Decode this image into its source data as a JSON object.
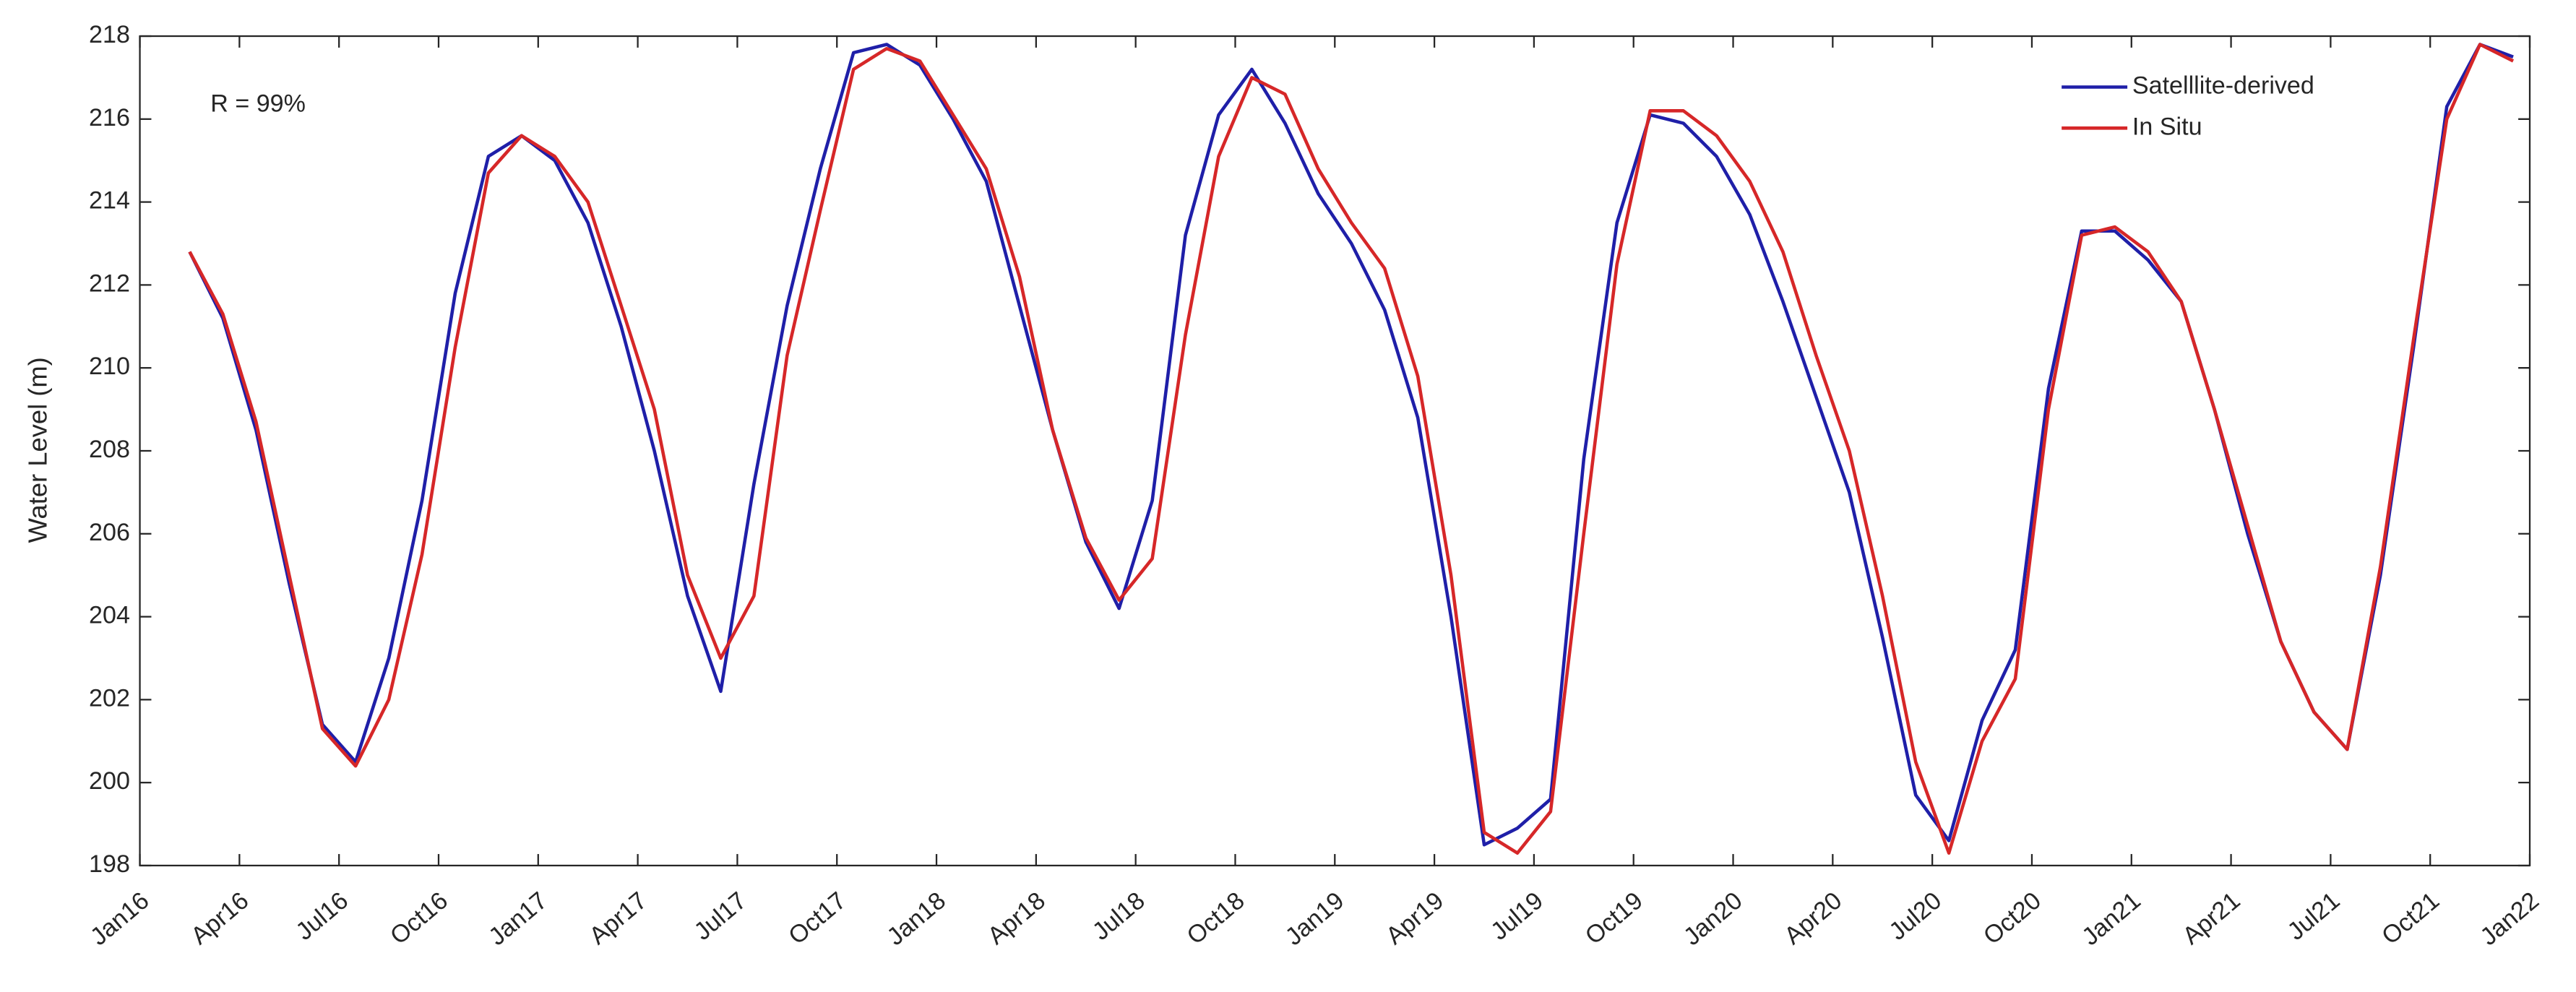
{
  "chart_data": {
    "type": "line",
    "y_label": "Water Level (m)",
    "annotation": "R = 99%",
    "x": [
      "2016-02",
      "2016-03",
      "2016-04",
      "2016-05",
      "2016-06",
      "2016-07",
      "2016-08",
      "2016-09",
      "2016-10",
      "2016-11",
      "2016-12",
      "2017-01",
      "2017-02",
      "2017-03",
      "2017-04",
      "2017-05",
      "2017-06",
      "2017-07",
      "2017-08",
      "2017-09",
      "2017-10",
      "2017-11",
      "2017-12",
      "2018-01",
      "2018-02",
      "2018-03",
      "2018-04",
      "2018-05",
      "2018-06",
      "2018-07",
      "2018-08",
      "2018-09",
      "2018-10",
      "2018-11",
      "2018-12",
      "2019-01",
      "2019-02",
      "2019-03",
      "2019-04",
      "2019-05",
      "2019-06",
      "2019-07",
      "2019-08",
      "2019-09",
      "2019-10",
      "2019-11",
      "2019-12",
      "2020-01",
      "2020-02",
      "2020-03",
      "2020-04",
      "2020-05",
      "2020-06",
      "2020-07",
      "2020-08",
      "2020-09",
      "2020-10",
      "2020-11",
      "2020-12",
      "2021-01",
      "2021-02",
      "2021-03",
      "2021-04",
      "2021-05",
      "2021-06",
      "2021-07",
      "2021-08",
      "2021-09",
      "2021-10",
      "2021-11",
      "2021-12"
    ],
    "series": [
      {
        "name": "Satelllite-derived",
        "color": "#1f1fa8",
        "values": [
          212.8,
          211.2,
          208.5,
          204.8,
          201.4,
          200.5,
          203.0,
          206.8,
          211.8,
          215.1,
          215.6,
          215.0,
          213.5,
          211.0,
          208.0,
          204.5,
          202.2,
          207.2,
          211.5,
          214.8,
          217.6,
          217.8,
          217.3,
          216.0,
          214.5,
          211.5,
          208.5,
          205.8,
          204.2,
          206.8,
          213.2,
          216.1,
          217.2,
          215.9,
          214.2,
          213.0,
          211.4,
          208.8,
          204.0,
          198.5,
          198.9,
          199.6,
          207.8,
          213.5,
          216.1,
          215.9,
          215.1,
          213.7,
          211.6,
          209.3,
          207.0,
          203.5,
          199.7,
          198.6,
          201.5,
          203.2,
          209.5,
          213.3,
          213.3,
          212.6,
          211.6,
          209.0,
          206.0,
          203.4,
          201.7,
          200.8,
          205.0,
          210.5,
          216.3,
          217.8,
          217.5
        ]
      },
      {
        "name": "In Situ",
        "color": "#d62728",
        "values": [
          212.8,
          211.3,
          208.7,
          205.0,
          201.3,
          200.4,
          202.0,
          205.5,
          210.5,
          214.7,
          215.6,
          215.1,
          214.0,
          211.5,
          209.0,
          205.0,
          203.0,
          204.5,
          210.3,
          213.8,
          217.2,
          217.7,
          217.4,
          216.1,
          214.8,
          212.2,
          208.5,
          205.9,
          204.4,
          205.4,
          210.8,
          215.1,
          217.0,
          216.6,
          214.8,
          213.5,
          212.4,
          209.8,
          205.0,
          198.8,
          198.3,
          199.3,
          206.0,
          212.5,
          216.2,
          216.2,
          215.6,
          214.5,
          212.8,
          210.3,
          208.0,
          204.5,
          200.5,
          198.3,
          201.0,
          202.5,
          209.0,
          213.2,
          213.4,
          212.8,
          211.6,
          209.0,
          206.2,
          203.4,
          201.7,
          200.8,
          205.2,
          210.7,
          216.0,
          217.8,
          217.4
        ]
      }
    ],
    "xlim": [
      "2016-01",
      "2022-01"
    ],
    "xticks": [
      {
        "value": "2016-01",
        "label": "Jan16"
      },
      {
        "value": "2016-04",
        "label": "Apr16"
      },
      {
        "value": "2016-07",
        "label": "Jul16"
      },
      {
        "value": "2016-10",
        "label": "Oct16"
      },
      {
        "value": "2017-01",
        "label": "Jan17"
      },
      {
        "value": "2017-04",
        "label": "Apr17"
      },
      {
        "value": "2017-07",
        "label": "Jul17"
      },
      {
        "value": "2017-10",
        "label": "Oct17"
      },
      {
        "value": "2018-01",
        "label": "Jan18"
      },
      {
        "value": "2018-04",
        "label": "Apr18"
      },
      {
        "value": "2018-07",
        "label": "Jul18"
      },
      {
        "value": "2018-10",
        "label": "Oct18"
      },
      {
        "value": "2019-01",
        "label": "Jan19"
      },
      {
        "value": "2019-04",
        "label": "Apr19"
      },
      {
        "value": "2019-07",
        "label": "Jul19"
      },
      {
        "value": "2019-10",
        "label": "Oct19"
      },
      {
        "value": "2020-01",
        "label": "Jan20"
      },
      {
        "value": "2020-04",
        "label": "Apr20"
      },
      {
        "value": "2020-07",
        "label": "Jul20"
      },
      {
        "value": "2020-10",
        "label": "Oct20"
      },
      {
        "value": "2021-01",
        "label": "Jan21"
      },
      {
        "value": "2021-04",
        "label": "Apr21"
      },
      {
        "value": "2021-07",
        "label": "Jul21"
      },
      {
        "value": "2021-10",
        "label": "Oct21"
      },
      {
        "value": "2022-01",
        "label": "Jan22"
      }
    ],
    "ylim": [
      198,
      218
    ],
    "yticks": [
      198,
      200,
      202,
      204,
      206,
      208,
      210,
      212,
      214,
      216,
      218
    ],
    "grid": false,
    "legend": "top-right"
  }
}
